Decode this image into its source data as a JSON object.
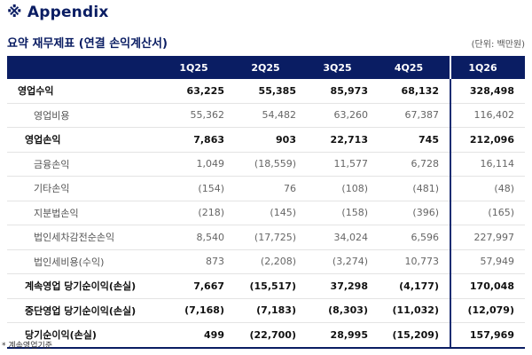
{
  "header": {
    "appendix": "※ Appendix",
    "subtitle": "요약 재무제표 (연결 손익계산서)",
    "unit": "(단위: 백만원)"
  },
  "table": {
    "columns": [
      "",
      "1Q25",
      "2Q25",
      "3Q25",
      "4Q25",
      "1Q26"
    ],
    "rows": [
      {
        "label": "영업수익",
        "style": "bold first",
        "values": [
          "63,225",
          "55,385",
          "85,973",
          "68,132",
          "328,498"
        ]
      },
      {
        "label": "영업비용",
        "style": "sub",
        "values": [
          "55,362",
          "54,482",
          "63,260",
          "67,387",
          "116,402"
        ]
      },
      {
        "label": "영업손익",
        "style": "bold",
        "values": [
          "7,863",
          "903",
          "22,713",
          "745",
          "212,096"
        ]
      },
      {
        "label": "금융손익",
        "style": "sub",
        "values": [
          "1,049",
          "(18,559)",
          "11,577",
          "6,728",
          "16,114"
        ]
      },
      {
        "label": "기타손익",
        "style": "sub",
        "values": [
          "(154)",
          "76",
          "(108)",
          "(481)",
          "(48)"
        ]
      },
      {
        "label": "지분법손익",
        "style": "sub",
        "values": [
          "(218)",
          "(145)",
          "(158)",
          "(396)",
          "(165)"
        ]
      },
      {
        "label": "법인세차감전순손익",
        "style": "sub",
        "values": [
          "8,540",
          "(17,725)",
          "34,024",
          "6,596",
          "227,997"
        ]
      },
      {
        "label": "법인세비용(수익)",
        "style": "sub",
        "values": [
          "873",
          "(2,208)",
          "(3,274)",
          "10,773",
          "57,949"
        ]
      },
      {
        "label": "계속영업 당기순이익(손실)",
        "style": "bold",
        "values": [
          "7,667",
          "(15,517)",
          "37,298",
          "(4,177)",
          "170,048"
        ]
      },
      {
        "label": "중단영업 당기순이익(손실)",
        "style": "bold",
        "values": [
          "(7,168)",
          "(7,183)",
          "(8,303)",
          "(11,032)",
          "(12,079)"
        ]
      },
      {
        "label": "당기순이익(손실)",
        "style": "bold",
        "values": [
          "499",
          "(22,700)",
          "28,995",
          "(15,209)",
          "157,969"
        ]
      }
    ]
  },
  "footnote": "* 계속영업기준",
  "colors": {
    "navy": "#0a1d63"
  }
}
